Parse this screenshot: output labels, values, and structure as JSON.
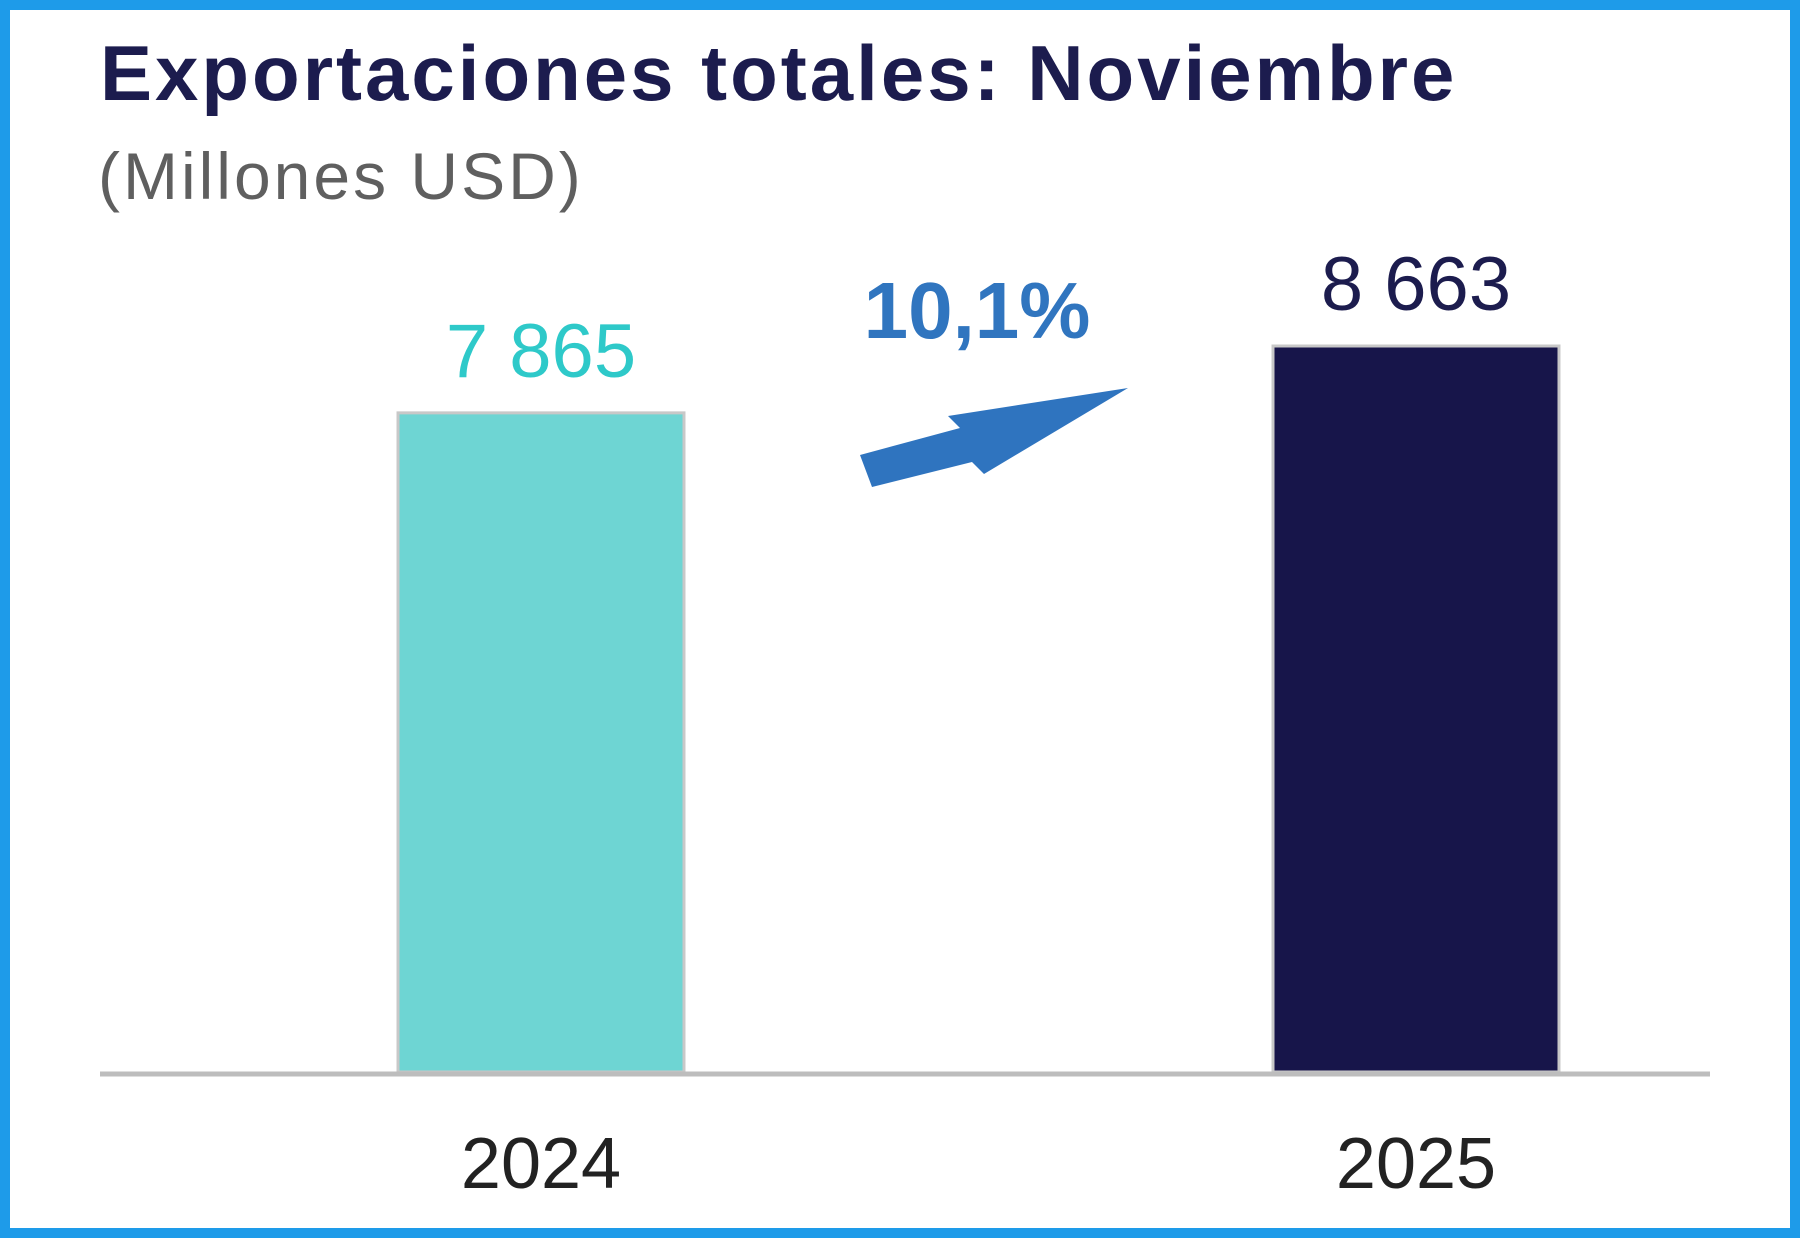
{
  "chart_data": {
    "type": "bar",
    "title": "Exportaciones totales: Noviembre",
    "subtitle": "(Millones USD)",
    "categories": [
      "2024",
      "2025"
    ],
    "values": [
      7865,
      8663
    ],
    "value_labels": [
      "7 865",
      "8 663"
    ],
    "colors": [
      "#6ed5d3",
      "#17154a"
    ],
    "label_colors": [
      "#2ec9c9",
      "#1c1c4e"
    ],
    "change_label": "10,1%",
    "change_color": "#3075bf",
    "ylim": [
      0,
      8663
    ],
    "grid": false,
    "legend": "none"
  }
}
